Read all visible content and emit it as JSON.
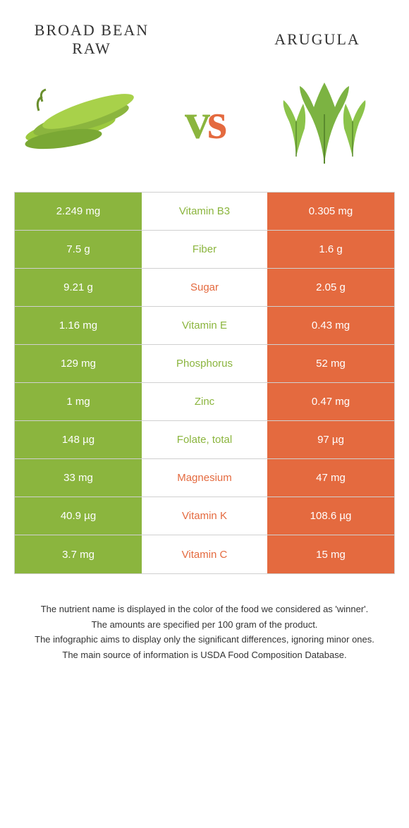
{
  "colors": {
    "left": "#8bb53e",
    "right": "#e46a3f",
    "mid_bg": "#ffffff",
    "border": "#d0d0d0",
    "text_dark": "#333333",
    "white": "#ffffff"
  },
  "header": {
    "left_title": "Broad bean raw",
    "right_title": "Arugula",
    "vs_v": "v",
    "vs_s": "s"
  },
  "rows": [
    {
      "left": "2.249 mg",
      "label": "Vitamin B3",
      "right": "0.305 mg",
      "winner": "left"
    },
    {
      "left": "7.5 g",
      "label": "Fiber",
      "right": "1.6 g",
      "winner": "left"
    },
    {
      "left": "9.21 g",
      "label": "Sugar",
      "right": "2.05 g",
      "winner": "right"
    },
    {
      "left": "1.16 mg",
      "label": "Vitamin E",
      "right": "0.43 mg",
      "winner": "left"
    },
    {
      "left": "129 mg",
      "label": "Phosphorus",
      "right": "52 mg",
      "winner": "left"
    },
    {
      "left": "1 mg",
      "label": "Zinc",
      "right": "0.47 mg",
      "winner": "left"
    },
    {
      "left": "148 µg",
      "label": "Folate, total",
      "right": "97 µg",
      "winner": "left"
    },
    {
      "left": "33 mg",
      "label": "Magnesium",
      "right": "47 mg",
      "winner": "right"
    },
    {
      "left": "40.9 µg",
      "label": "Vitamin K",
      "right": "108.6 µg",
      "winner": "right"
    },
    {
      "left": "3.7 mg",
      "label": "Vitamin C",
      "right": "15 mg",
      "winner": "right"
    }
  ],
  "footnotes": [
    "The nutrient name is displayed in the color of the food we considered as 'winner'.",
    "The amounts are specified per 100 gram of the product.",
    "The infographic aims to display only the significant differences, ignoring minor ones.",
    "The main source of information is USDA Food Composition Database."
  ]
}
